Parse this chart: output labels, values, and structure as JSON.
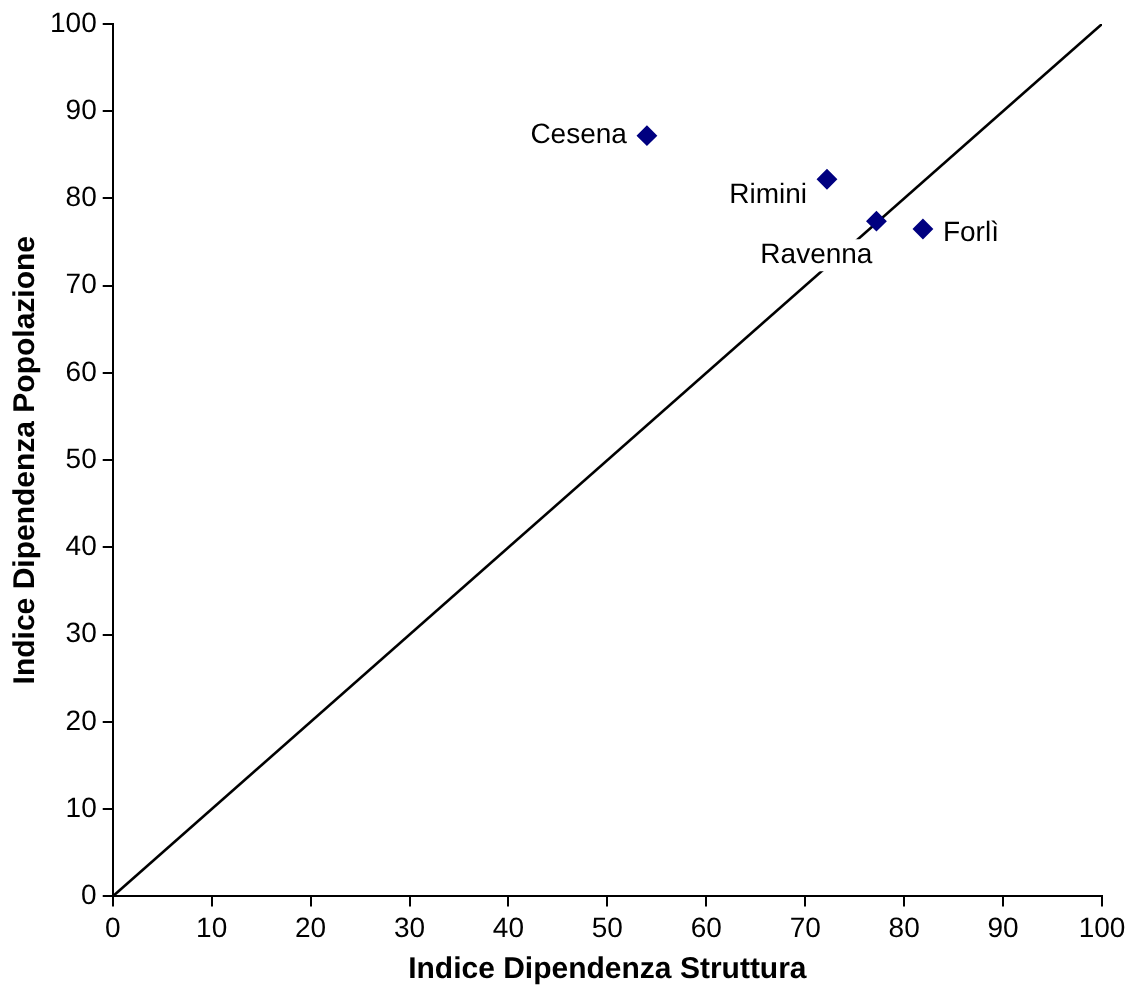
{
  "chart_data": {
    "type": "scatter",
    "xlabel": "Indice Dipendenza Struttura",
    "ylabel": "Indice Dipendenza Popolazione",
    "xlim": [
      0,
      100
    ],
    "ylim": [
      0,
      100
    ],
    "xticks": [
      0,
      10,
      20,
      30,
      40,
      50,
      60,
      70,
      80,
      90,
      100
    ],
    "yticks": [
      0,
      10,
      20,
      30,
      40,
      50,
      60,
      70,
      80,
      90,
      100
    ],
    "grid": false,
    "legend": false,
    "marker": "diamond",
    "series": [
      {
        "type": "scatter",
        "color": "#000080",
        "x": [
          54,
          72.2,
          77.2,
          81.9
        ],
        "values": [
          87.2,
          82.2,
          77.4,
          76.5
        ]
      },
      {
        "type": "line",
        "color": "#000000",
        "x": [
          0,
          100
        ],
        "values": [
          0,
          100
        ],
        "marker": "none"
      }
    ],
    "annotations": [
      {
        "text": "Cesena",
        "x": 54,
        "y": 87.2
      },
      {
        "text": "Rimini",
        "x": 72.2,
        "y": 82.2
      },
      {
        "text": "Ravenna",
        "x": 77.2,
        "y": 77.4
      },
      {
        "text": "Forlì",
        "x": 81.9,
        "y": 76.5
      }
    ]
  }
}
